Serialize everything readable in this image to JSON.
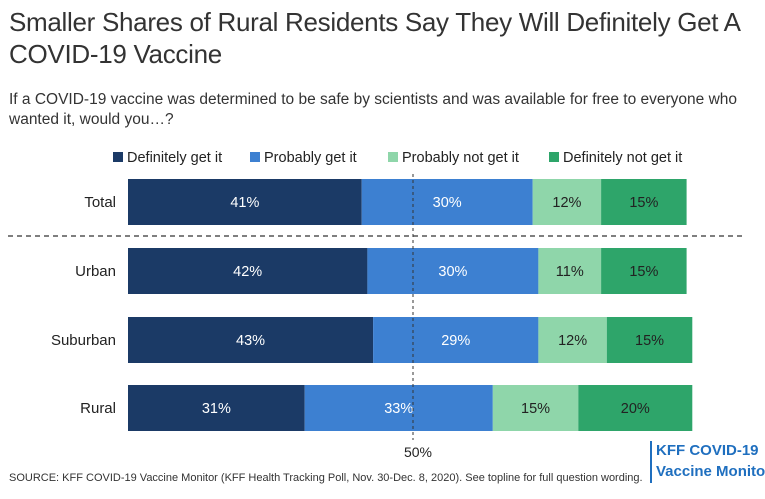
{
  "header": {
    "title": "Smaller Shares of Rural Residents Say They Will Definitely Get A COVID-19 Vaccine",
    "subtitle": "If a COVID-19 vaccine was determined to be safe by scientists and was available for free to everyone who wanted it, would you…?"
  },
  "footer": {
    "source": "SOURCE: KFF COVID-19 Vaccine Monitor (KFF Health Tracking Poll, Nov. 30-Dec. 8, 2020). See topline for full question wording.",
    "brand_line1": "KFF COVID-19",
    "brand_line2": "Vaccine Monito"
  },
  "chart_data": {
    "type": "bar",
    "orientation": "horizontal",
    "stacked": true,
    "title": "Smaller Shares of Rural Residents Say They Will Definitely Get A COVID-19 Vaccine",
    "categories": [
      "Total",
      "Urban",
      "Suburban",
      "Rural"
    ],
    "series": [
      {
        "name": "Definitely get it",
        "color": "#1b3a66",
        "values": [
          41,
          42,
          43,
          31
        ]
      },
      {
        "name": "Probably get it",
        "color": "#3d80d1",
        "values": [
          30,
          30,
          29,
          33
        ]
      },
      {
        "name": "Probably not get it",
        "color": "#8fd6aa",
        "values": [
          12,
          11,
          12,
          15
        ]
      },
      {
        "name": "Definitely not get it",
        "color": "#2ea56a",
        "values": [
          15,
          15,
          15,
          20
        ]
      }
    ],
    "value_suffix": "%",
    "reference_line": {
      "value": 50,
      "label": "50%"
    },
    "legend_position": "top",
    "grid": false
  }
}
